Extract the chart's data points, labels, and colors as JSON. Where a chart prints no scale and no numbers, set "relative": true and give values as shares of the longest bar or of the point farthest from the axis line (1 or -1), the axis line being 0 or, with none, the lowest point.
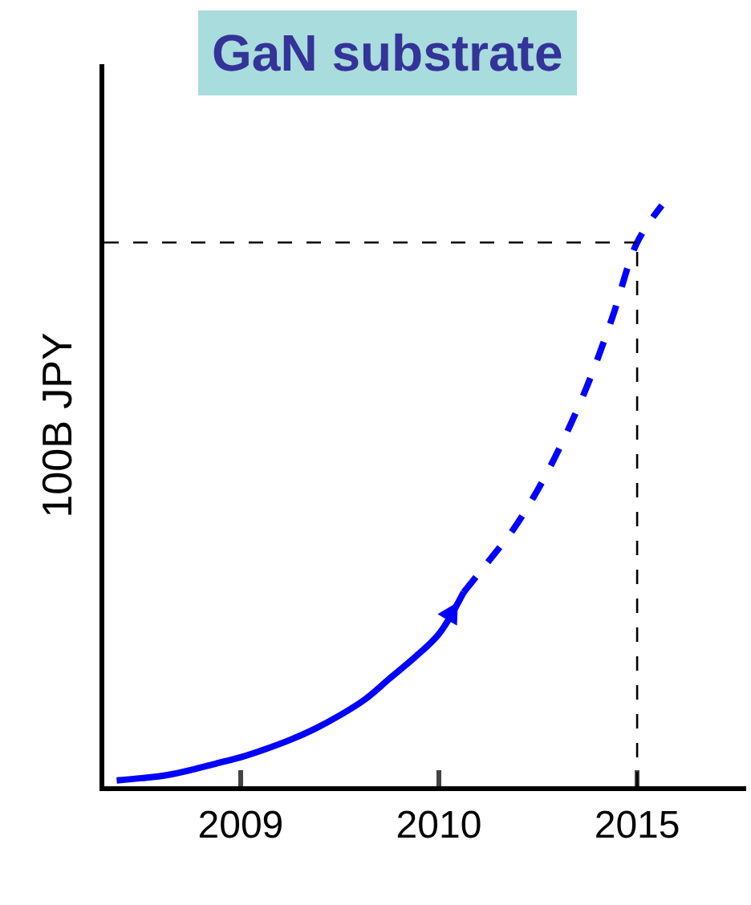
{
  "chart_data": {
    "type": "line",
    "title": "GaN substrate",
    "ylabel": "100B JPY",
    "relative": true,
    "categories": [
      null,
      null,
      null,
      null,
      null,
      "2009",
      null,
      null,
      null,
      null,
      null,
      null,
      null,
      "2010",
      null,
      null,
      null,
      null,
      null,
      null,
      null,
      "2015",
      null
    ],
    "series": [
      {
        "color": "#0000ff",
        "line_style": "solid",
        "values": [
          0.01,
          0.014,
          0.019,
          0.028,
          0.039,
          0.05,
          0.064,
          0.08,
          0.099,
          0.122,
          0.149,
          0.185,
          0.221,
          0.262,
          0.334,
          null,
          null,
          null,
          null,
          null,
          null,
          null,
          null
        ]
      },
      {
        "color": "#0000ff",
        "line_style": "dashed",
        "values": [
          null,
          null,
          null,
          null,
          null,
          null,
          null,
          null,
          null,
          null,
          null,
          null,
          null,
          null,
          0.334,
          0.387,
          0.442,
          0.511,
          0.594,
          0.691,
          0.807,
          0.936,
          1
        ]
      }
    ],
    "ref_lines": [
      {
        "axis": "y",
        "value": 0.936,
        "color": "#000000",
        "line_style": "dashed"
      },
      {
        "axis": "x",
        "value": "2015",
        "color": "#000000",
        "line_style": "dashed"
      }
    ],
    "grid": false,
    "marker": "none"
  }
}
